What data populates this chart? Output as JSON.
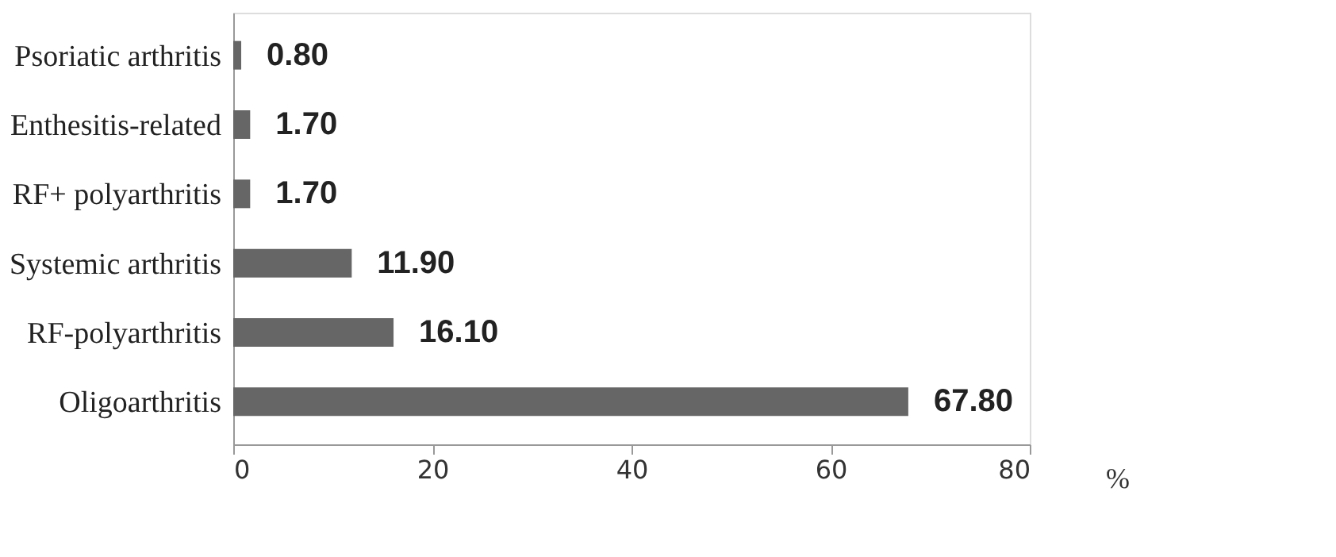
{
  "chart_data": {
    "type": "bar",
    "orientation": "horizontal",
    "xlabel": "%",
    "categories": [
      "Psoriatic arthritis",
      "Enthesitis-related",
      "RF+ polyarthritis",
      "Systemic arthritis",
      "RF-polyarthritis",
      "Oligoarthritis"
    ],
    "values": [
      0.8,
      1.7,
      1.7,
      11.9,
      16.1,
      67.8
    ],
    "value_labels": [
      "0.80",
      "1.70",
      "1.70",
      "11.90",
      "16.10",
      "67.80"
    ],
    "color": "#666666",
    "xlim": [
      0,
      80
    ],
    "xticks": [
      0,
      20,
      40,
      60,
      80
    ],
    "grid": false
  }
}
